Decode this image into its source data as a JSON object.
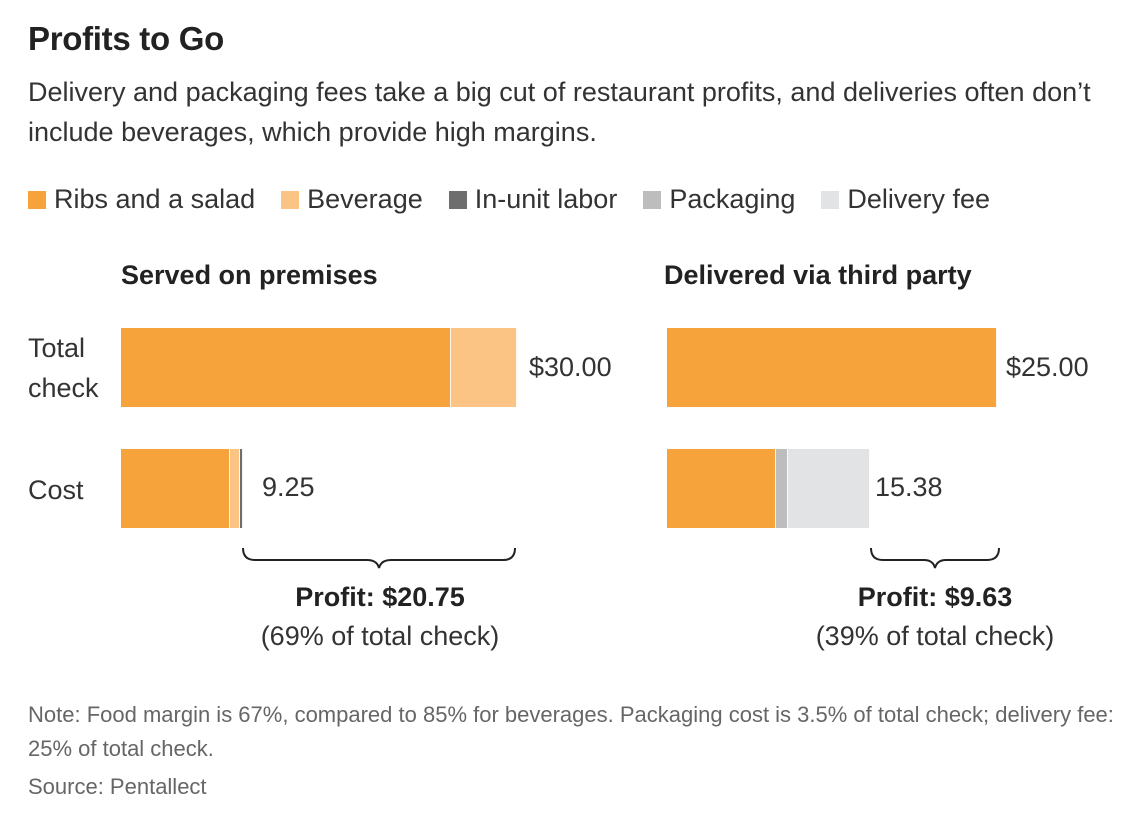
{
  "title": "Profits to Go",
  "subtitle": "Delivery and packaging fees take a big cut of restaurant profits, and deliveries often don’t include beverages, which provide high margins.",
  "legend": [
    {
      "label": "Ribs and a salad",
      "color": "#f5a33a"
    },
    {
      "label": "Beverage",
      "color": "#fbc384"
    },
    {
      "label": "In-unit labor",
      "color": "#6e6e6e"
    },
    {
      "label": "Packaging",
      "color": "#bdbdbd"
    },
    {
      "label": "Delivery fee",
      "color": "#e2e3e5"
    }
  ],
  "row_labels": {
    "total": "Total check",
    "cost": "Cost"
  },
  "note": "Note: Food margin is 67%, compared to 85% for beverages. Packaging cost is 3.5% of total check; delivery fee: 25% of total check.",
  "source": "Source: Pentallect",
  "chart_data": [
    {
      "type": "bar",
      "title": "Served on premises",
      "categories": [
        "Total check",
        "Cost"
      ],
      "series": [
        {
          "name": "Ribs and a salad",
          "values": [
            25.0,
            8.25
          ]
        },
        {
          "name": "Beverage",
          "values": [
            5.0,
            0.75
          ]
        },
        {
          "name": "In-unit labor",
          "values": [
            0,
            0.25
          ]
        },
        {
          "name": "Packaging",
          "values": [
            0,
            0
          ]
        },
        {
          "name": "Delivery fee",
          "values": [
            0,
            0
          ]
        }
      ],
      "value_labels": [
        "$30.00",
        "9.25"
      ],
      "profit_label": "Profit: $20.75",
      "profit_note": "(69% of total check)"
    },
    {
      "type": "bar",
      "title": "Delivered via third party",
      "categories": [
        "Total check",
        "Cost"
      ],
      "series": [
        {
          "name": "Ribs and a salad",
          "values": [
            25.0,
            8.25
          ]
        },
        {
          "name": "Beverage",
          "values": [
            0,
            0
          ]
        },
        {
          "name": "In-unit labor",
          "values": [
            0,
            0
          ]
        },
        {
          "name": "Packaging",
          "values": [
            0,
            0.88
          ]
        },
        {
          "name": "Delivery fee",
          "values": [
            0,
            6.25
          ]
        }
      ],
      "value_labels": [
        "$25.00",
        "15.38"
      ],
      "profit_label": "Profit: $9.63",
      "profit_note": "(39% of total check)"
    }
  ]
}
